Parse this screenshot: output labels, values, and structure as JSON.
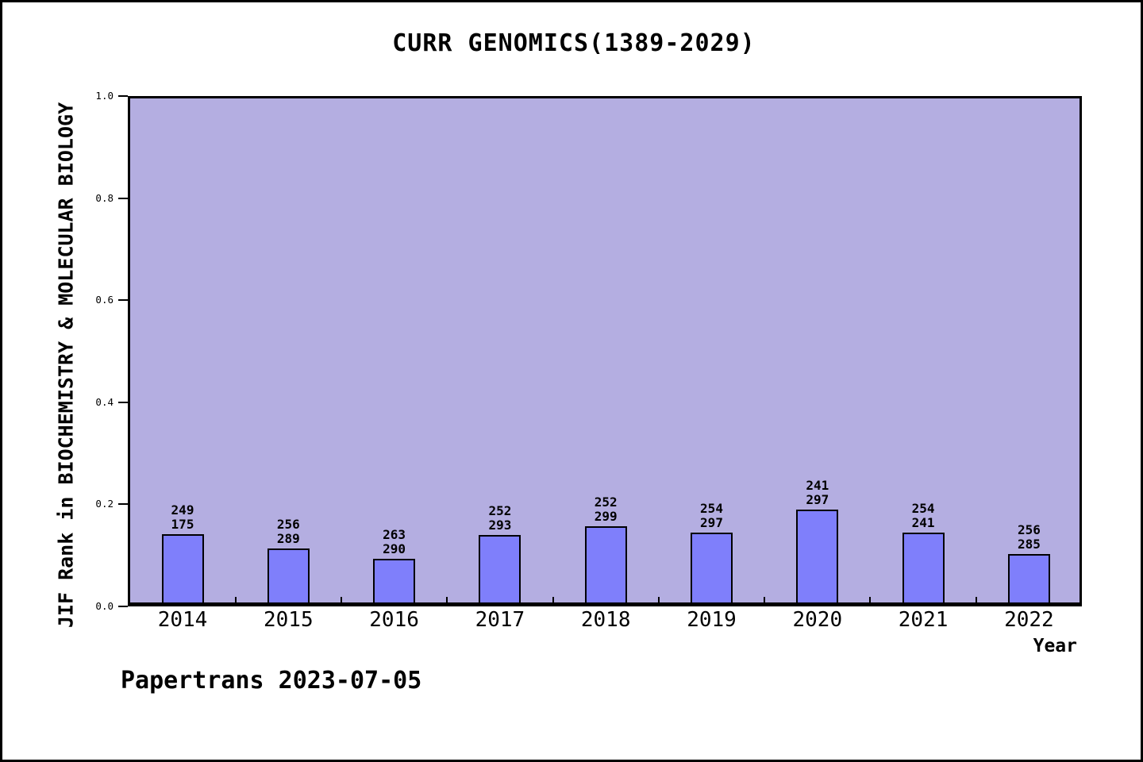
{
  "page": {
    "footer": "Papertrans 2023-07-05"
  },
  "chart_data": {
    "type": "bar",
    "title": "CURR GENOMICS(1389-2029)",
    "xlabel": "Year",
    "ylabel": "JIF Rank in BIOCHEMISTRY & MOLECULAR BIOLOGY",
    "categories": [
      "2014",
      "2015",
      "2016",
      "2017",
      "2018",
      "2019",
      "2020",
      "2021",
      "2022"
    ],
    "values": [
      0.142,
      0.114,
      0.093,
      0.14,
      0.157,
      0.145,
      0.189,
      0.145,
      0.102
    ],
    "bar_labels": [
      {
        "top": "249",
        "bottom": "175"
      },
      {
        "top": "256",
        "bottom": "289"
      },
      {
        "top": "263",
        "bottom": "290"
      },
      {
        "top": "252",
        "bottom": "293"
      },
      {
        "top": "252",
        "bottom": "299"
      },
      {
        "top": "254",
        "bottom": "297"
      },
      {
        "top": "241",
        "bottom": "297"
      },
      {
        "top": "254",
        "bottom": "241"
      },
      {
        "top": "256",
        "bottom": "285"
      }
    ],
    "ytick_labels": [
      "0.0",
      "0.2",
      "0.4",
      "0.6",
      "0.8",
      "1.0"
    ],
    "ytick_values": [
      0.0,
      0.2,
      0.4,
      0.6,
      0.8,
      1.0
    ],
    "ylim": [
      0,
      1
    ],
    "grid": false,
    "legend_position": "none",
    "colors": {
      "bar_fill": "#7f7ffb",
      "bar_edge": "#000000",
      "plot_background": "#b4aee1",
      "figure_background": "#ffffff",
      "text": "#000000"
    }
  }
}
